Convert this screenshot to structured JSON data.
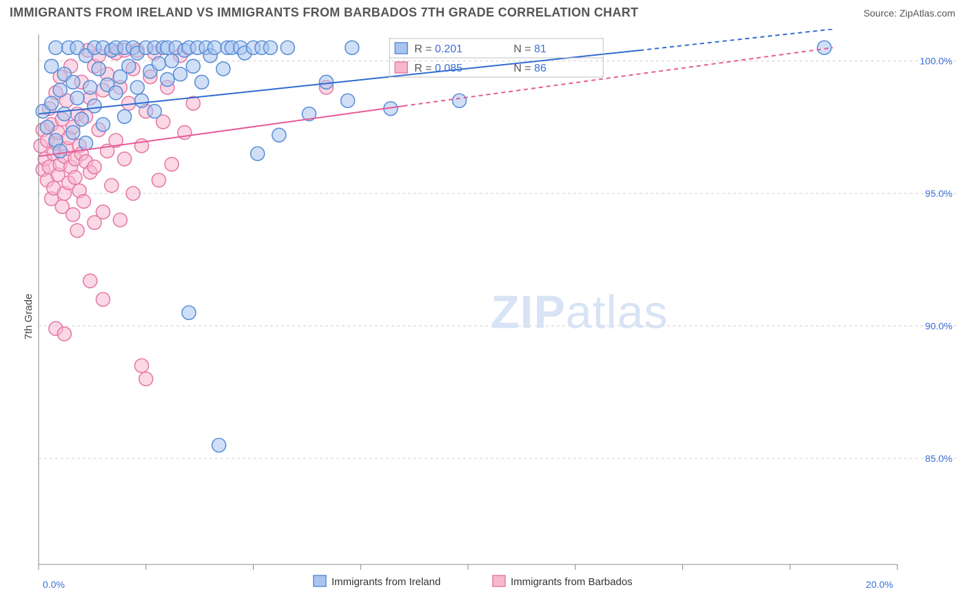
{
  "header": {
    "title": "IMMIGRANTS FROM IRELAND VS IMMIGRANTS FROM BARBADOS 7TH GRADE CORRELATION CHART",
    "source_label": "Source: ",
    "source_value": "ZipAtlas.com"
  },
  "chart": {
    "type": "scatter",
    "ylabel": "7th Grade",
    "watermark_a": "ZIP",
    "watermark_b": "atlas",
    "background_color": "#ffffff",
    "grid_color": "#cfcfcf",
    "axis_color": "#888888",
    "tick_label_color": "#3b6fd6",
    "xlim": [
      0,
      20
    ],
    "ylim": [
      81,
      101
    ],
    "xticks": [
      0,
      20
    ],
    "xtick_labels": [
      "0.0%",
      "20.0%"
    ],
    "xminor": [
      2.5,
      5.0,
      7.5,
      10.0,
      12.5,
      15.0,
      17.5
    ],
    "yticks": [
      85,
      90,
      95,
      100
    ],
    "ytick_labels": [
      "85.0%",
      "90.0%",
      "95.0%",
      "100.0%"
    ],
    "marker_radius": 10,
    "marker_stroke_width": 1.6,
    "series": [
      {
        "name": "Immigrants from Ireland",
        "fill": "#a9c5ef",
        "stroke": "#5a8fd8",
        "fill_opacity": 0.55,
        "trend": {
          "x0": 0,
          "y0": 98.0,
          "x1_solid": 14.0,
          "y1_solid": 100.4,
          "x1_dash": 18.5,
          "y1_dash": 101.2,
          "color": "#2e6bd1",
          "width": 2
        },
        "r_label": "R = ",
        "r_value": "0.201",
        "n_label": "N = ",
        "n_value": "81",
        "points": [
          [
            0.1,
            98.1
          ],
          [
            0.2,
            97.5
          ],
          [
            0.3,
            98.4
          ],
          [
            0.3,
            99.8
          ],
          [
            0.4,
            97.0
          ],
          [
            0.4,
            100.5
          ],
          [
            0.5,
            98.9
          ],
          [
            0.5,
            96.6
          ],
          [
            0.6,
            99.5
          ],
          [
            0.6,
            98.0
          ],
          [
            0.7,
            100.5
          ],
          [
            0.8,
            99.2
          ],
          [
            0.8,
            97.3
          ],
          [
            0.9,
            100.5
          ],
          [
            0.9,
            98.6
          ],
          [
            1.0,
            97.8
          ],
          [
            1.1,
            100.2
          ],
          [
            1.1,
            96.9
          ],
          [
            1.2,
            99.0
          ],
          [
            1.3,
            100.5
          ],
          [
            1.3,
            98.3
          ],
          [
            1.4,
            99.7
          ],
          [
            1.5,
            100.5
          ],
          [
            1.5,
            97.6
          ],
          [
            1.6,
            99.1
          ],
          [
            1.7,
            100.4
          ],
          [
            1.8,
            98.8
          ],
          [
            1.8,
            100.5
          ],
          [
            1.9,
            99.4
          ],
          [
            2.0,
            100.5
          ],
          [
            2.0,
            97.9
          ],
          [
            2.1,
            99.8
          ],
          [
            2.2,
            100.5
          ],
          [
            2.3,
            99.0
          ],
          [
            2.3,
            100.3
          ],
          [
            2.4,
            98.5
          ],
          [
            2.5,
            100.5
          ],
          [
            2.6,
            99.6
          ],
          [
            2.7,
            100.5
          ],
          [
            2.7,
            98.1
          ],
          [
            2.8,
            99.9
          ],
          [
            2.9,
            100.5
          ],
          [
            3.0,
            99.3
          ],
          [
            3.0,
            100.5
          ],
          [
            3.1,
            100.0
          ],
          [
            3.2,
            100.5
          ],
          [
            3.3,
            99.5
          ],
          [
            3.4,
            100.4
          ],
          [
            3.5,
            100.5
          ],
          [
            3.6,
            99.8
          ],
          [
            3.7,
            100.5
          ],
          [
            3.8,
            99.2
          ],
          [
            3.9,
            100.5
          ],
          [
            4.0,
            100.2
          ],
          [
            4.1,
            100.5
          ],
          [
            4.3,
            99.7
          ],
          [
            4.4,
            100.5
          ],
          [
            4.5,
            100.5
          ],
          [
            4.7,
            100.5
          ],
          [
            4.8,
            100.3
          ],
          [
            5.0,
            100.5
          ],
          [
            5.1,
            96.5
          ],
          [
            5.2,
            100.5
          ],
          [
            5.4,
            100.5
          ],
          [
            5.6,
            97.2
          ],
          [
            5.8,
            100.5
          ],
          [
            6.3,
            98.0
          ],
          [
            6.7,
            99.2
          ],
          [
            7.2,
            98.5
          ],
          [
            7.3,
            100.5
          ],
          [
            8.2,
            98.2
          ],
          [
            9.8,
            98.5
          ],
          [
            3.5,
            90.5
          ],
          [
            4.2,
            85.5
          ],
          [
            18.3,
            100.5
          ]
        ]
      },
      {
        "name": "Immigrants from Barbados",
        "fill": "#f7b8cf",
        "stroke": "#e67aa5",
        "fill_opacity": 0.55,
        "trend": {
          "x0": 0,
          "y0": 96.4,
          "x1_solid": 8.5,
          "y1_solid": 98.3,
          "x1_dash": 18.5,
          "y1_dash": 100.5,
          "color": "#e65a96",
          "width": 2
        },
        "r_label": "R = ",
        "r_value": "0.085",
        "n_label": "N = ",
        "n_value": "86",
        "points": [
          [
            0.05,
            96.8
          ],
          [
            0.1,
            95.9
          ],
          [
            0.1,
            97.4
          ],
          [
            0.15,
            96.3
          ],
          [
            0.2,
            95.5
          ],
          [
            0.2,
            97.0
          ],
          [
            0.25,
            98.2
          ],
          [
            0.25,
            96.0
          ],
          [
            0.3,
            94.8
          ],
          [
            0.3,
            97.6
          ],
          [
            0.35,
            96.5
          ],
          [
            0.35,
            95.2
          ],
          [
            0.4,
            98.8
          ],
          [
            0.4,
            96.9
          ],
          [
            0.45,
            95.7
          ],
          [
            0.45,
            97.3
          ],
          [
            0.5,
            96.1
          ],
          [
            0.5,
            99.4
          ],
          [
            0.55,
            94.5
          ],
          [
            0.55,
            97.8
          ],
          [
            0.6,
            96.4
          ],
          [
            0.6,
            95.0
          ],
          [
            0.65,
            98.5
          ],
          [
            0.65,
            96.7
          ],
          [
            0.7,
            95.4
          ],
          [
            0.7,
            97.1
          ],
          [
            0.75,
            99.8
          ],
          [
            0.75,
            96.0
          ],
          [
            0.8,
            94.2
          ],
          [
            0.8,
            97.5
          ],
          [
            0.85,
            96.3
          ],
          [
            0.85,
            95.6
          ],
          [
            0.9,
            98.0
          ],
          [
            0.9,
            93.6
          ],
          [
            0.95,
            96.8
          ],
          [
            0.95,
            95.1
          ],
          [
            1.0,
            99.2
          ],
          [
            1.0,
            96.5
          ],
          [
            1.05,
            94.7
          ],
          [
            1.1,
            97.9
          ],
          [
            1.1,
            96.2
          ],
          [
            1.15,
            100.4
          ],
          [
            1.2,
            95.8
          ],
          [
            1.2,
            98.6
          ],
          [
            1.3,
            99.8
          ],
          [
            1.3,
            96.0
          ],
          [
            1.3,
            93.9
          ],
          [
            1.4,
            97.4
          ],
          [
            1.4,
            100.2
          ],
          [
            1.5,
            94.3
          ],
          [
            1.5,
            98.9
          ],
          [
            1.6,
            96.6
          ],
          [
            1.6,
            99.5
          ],
          [
            1.7,
            100.4
          ],
          [
            1.7,
            95.3
          ],
          [
            1.8,
            100.3
          ],
          [
            1.8,
            97.0
          ],
          [
            1.9,
            99.0
          ],
          [
            1.9,
            94.0
          ],
          [
            2.0,
            100.4
          ],
          [
            2.0,
            96.3
          ],
          [
            2.1,
            98.4
          ],
          [
            2.2,
            99.7
          ],
          [
            2.2,
            95.0
          ],
          [
            2.3,
            100.4
          ],
          [
            2.4,
            96.8
          ],
          [
            2.5,
            98.1
          ],
          [
            2.6,
            99.4
          ],
          [
            2.7,
            100.3
          ],
          [
            2.8,
            95.5
          ],
          [
            2.9,
            97.7
          ],
          [
            3.0,
            99.0
          ],
          [
            3.1,
            96.1
          ],
          [
            3.3,
            100.2
          ],
          [
            3.4,
            97.3
          ],
          [
            3.6,
            98.4
          ],
          [
            0.4,
            89.9
          ],
          [
            0.6,
            89.7
          ],
          [
            1.2,
            91.7
          ],
          [
            1.5,
            91.0
          ],
          [
            2.4,
            88.5
          ],
          [
            2.5,
            88.0
          ],
          [
            6.7,
            99.0
          ]
        ]
      }
    ],
    "bottom_legend": [
      {
        "label": "Immigrants from Ireland",
        "fill": "#a9c5ef",
        "stroke": "#5a8fd8"
      },
      {
        "label": "Immigrants from Barbados",
        "fill": "#f7b8cf",
        "stroke": "#e67aa5"
      }
    ],
    "stat_box": {
      "border_color": "#bfbfbf",
      "value_color": "#3b6fd6",
      "label_color": "#555555"
    }
  }
}
